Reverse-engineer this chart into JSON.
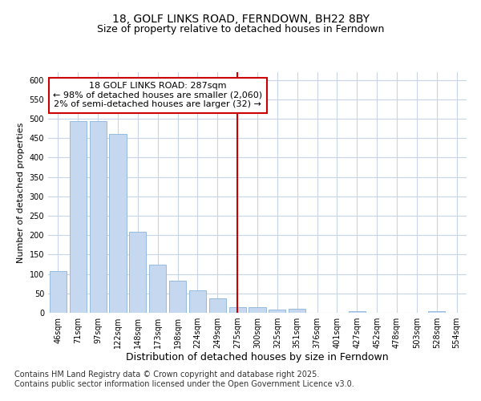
{
  "title1": "18, GOLF LINKS ROAD, FERNDOWN, BH22 8BY",
  "title2": "Size of property relative to detached houses in Ferndown",
  "xlabel": "Distribution of detached houses by size in Ferndown",
  "ylabel": "Number of detached properties",
  "categories": [
    "46sqm",
    "71sqm",
    "97sqm",
    "122sqm",
    "148sqm",
    "173sqm",
    "198sqm",
    "224sqm",
    "249sqm",
    "275sqm",
    "300sqm",
    "325sqm",
    "351sqm",
    "376sqm",
    "401sqm",
    "427sqm",
    "452sqm",
    "478sqm",
    "503sqm",
    "528sqm",
    "554sqm"
  ],
  "values": [
    107,
    494,
    494,
    460,
    208,
    125,
    83,
    58,
    38,
    15,
    15,
    8,
    11,
    0,
    0,
    5,
    0,
    0,
    0,
    5,
    0
  ],
  "bar_color": "#c5d8f0",
  "bar_edge_color": "#8ab4d8",
  "vline_index": 9,
  "vline_color": "#cc0000",
  "annotation_text": "18 GOLF LINKS ROAD: 287sqm\n← 98% of detached houses are smaller (2,060)\n2% of semi-detached houses are larger (32) →",
  "annotation_box_facecolor": "#ffffff",
  "annotation_box_edgecolor": "#cc0000",
  "ylim": [
    0,
    620
  ],
  "yticks": [
    0,
    50,
    100,
    150,
    200,
    250,
    300,
    350,
    400,
    450,
    500,
    550,
    600
  ],
  "bg_color": "#ffffff",
  "plot_bg_color": "#ffffff",
  "grid_color": "#c8d4e8",
  "footer": "Contains HM Land Registry data © Crown copyright and database right 2025.\nContains public sector information licensed under the Open Government Licence v3.0.",
  "title1_fontsize": 10,
  "title2_fontsize": 9,
  "xlabel_fontsize": 9,
  "ylabel_fontsize": 8,
  "tick_fontsize": 7,
  "annotation_fontsize": 8,
  "footer_fontsize": 7
}
